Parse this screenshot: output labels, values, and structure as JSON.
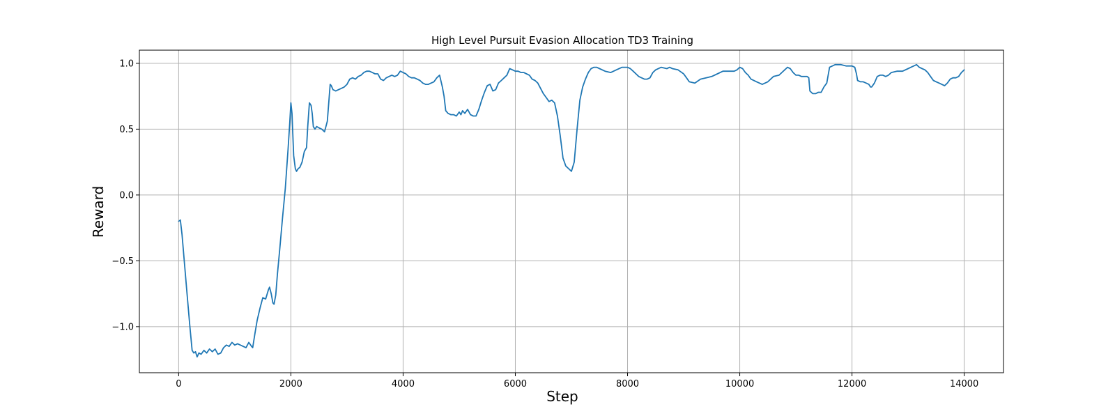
{
  "chart_data": {
    "type": "line",
    "title": "High Level Pursuit Evasion Allocation TD3 Training",
    "xlabel": "Step",
    "ylabel": "Reward",
    "xlim": [
      -700,
      14700
    ],
    "ylim": [
      -1.35,
      1.1
    ],
    "grid": true,
    "x_ticks": [
      0,
      2000,
      4000,
      6000,
      8000,
      10000,
      12000,
      14000
    ],
    "x_tick_labels": [
      "0",
      "2000",
      "4000",
      "6000",
      "8000",
      "10000",
      "12000",
      "14000"
    ],
    "y_ticks": [
      -1.0,
      -0.5,
      0.0,
      0.5,
      1.0
    ],
    "y_tick_labels": [
      "−1.0",
      "−0.5",
      "0.0",
      "0.5",
      "1.0"
    ],
    "series": [
      {
        "color": "#1f77b4",
        "x": [
          0,
          30,
          60,
          100,
          150,
          200,
          240,
          270,
          300,
          330,
          360,
          400,
          450,
          500,
          550,
          600,
          650,
          700,
          750,
          800,
          850,
          900,
          950,
          1000,
          1050,
          1100,
          1150,
          1200,
          1250,
          1300,
          1320,
          1360,
          1400,
          1450,
          1500,
          1550,
          1600,
          1620,
          1650,
          1680,
          1700,
          1730,
          1760,
          1800,
          1850,
          1900,
          1950,
          1980,
          2000,
          2020,
          2050,
          2080,
          2100,
          2130,
          2160,
          2200,
          2240,
          2280,
          2300,
          2330,
          2360,
          2380,
          2400,
          2430,
          2460,
          2500,
          2550,
          2600,
          2650,
          2700,
          2720,
          2750,
          2800,
          2850,
          2900,
          2950,
          3000,
          3050,
          3100,
          3150,
          3200,
          3250,
          3300,
          3350,
          3400,
          3450,
          3500,
          3550,
          3600,
          3650,
          3700,
          3750,
          3800,
          3850,
          3900,
          3950,
          4000,
          4050,
          4100,
          4150,
          4200,
          4250,
          4300,
          4350,
          4400,
          4450,
          4500,
          4550,
          4600,
          4650,
          4700,
          4730,
          4760,
          4800,
          4850,
          4900,
          4950,
          5000,
          5030,
          5060,
          5100,
          5150,
          5200,
          5250,
          5300,
          5350,
          5400,
          5450,
          5500,
          5550,
          5600,
          5650,
          5700,
          5750,
          5800,
          5850,
          5900,
          5950,
          6000,
          6050,
          6100,
          6150,
          6200,
          6250,
          6300,
          6350,
          6400,
          6450,
          6500,
          6550,
          6600,
          6650,
          6700,
          6750,
          6800,
          6850,
          6900,
          6950,
          7000,
          7050,
          7100,
          7150,
          7200,
          7250,
          7300,
          7350,
          7400,
          7450,
          7500,
          7600,
          7700,
          7800,
          7900,
          8000,
          8050,
          8100,
          8150,
          8200,
          8250,
          8300,
          8350,
          8400,
          8450,
          8500,
          8600,
          8700,
          8750,
          8800,
          8900,
          9000,
          9050,
          9100,
          9200,
          9300,
          9400,
          9500,
          9600,
          9700,
          9800,
          9900,
          9950,
          10000,
          10050,
          10100,
          10150,
          10200,
          10300,
          10400,
          10500,
          10600,
          10700,
          10750,
          10800,
          10850,
          10900,
          10950,
          11000,
          11050,
          11100,
          11150,
          11200,
          11230,
          11250,
          11300,
          11350,
          11400,
          11450,
          11500,
          11550,
          11600,
          11700,
          11800,
          11900,
          12000,
          12050,
          12080,
          12100,
          12150,
          12200,
          12250,
          12300,
          12330,
          12350,
          12400,
          12450,
          12500,
          12550,
          12600,
          12650,
          12700,
          12800,
          12900,
          13000,
          13050,
          13100,
          13150,
          13200,
          13250,
          13300,
          13350,
          13400,
          13450,
          13500,
          13550,
          13600,
          13650,
          13700,
          13750,
          13800,
          13850,
          13900,
          13950,
          14000
        ],
        "values": [
          -0.2,
          -0.19,
          -0.3,
          -0.5,
          -0.75,
          -1.0,
          -1.18,
          -1.2,
          -1.19,
          -1.23,
          -1.2,
          -1.21,
          -1.18,
          -1.2,
          -1.17,
          -1.19,
          -1.17,
          -1.21,
          -1.2,
          -1.16,
          -1.14,
          -1.15,
          -1.12,
          -1.14,
          -1.13,
          -1.14,
          -1.15,
          -1.16,
          -1.12,
          -1.15,
          -1.16,
          -1.05,
          -0.95,
          -0.86,
          -0.78,
          -0.79,
          -0.72,
          -0.7,
          -0.75,
          -0.82,
          -0.83,
          -0.76,
          -0.6,
          -0.42,
          -0.18,
          0.05,
          0.35,
          0.55,
          0.7,
          0.62,
          0.3,
          0.2,
          0.18,
          0.2,
          0.21,
          0.25,
          0.33,
          0.36,
          0.52,
          0.7,
          0.68,
          0.62,
          0.52,
          0.5,
          0.52,
          0.51,
          0.5,
          0.48,
          0.56,
          0.84,
          0.83,
          0.8,
          0.79,
          0.8,
          0.81,
          0.82,
          0.84,
          0.88,
          0.89,
          0.88,
          0.9,
          0.91,
          0.93,
          0.94,
          0.94,
          0.93,
          0.92,
          0.92,
          0.88,
          0.87,
          0.89,
          0.9,
          0.91,
          0.9,
          0.91,
          0.94,
          0.93,
          0.92,
          0.9,
          0.89,
          0.89,
          0.88,
          0.87,
          0.85,
          0.84,
          0.84,
          0.85,
          0.86,
          0.89,
          0.91,
          0.82,
          0.75,
          0.64,
          0.62,
          0.61,
          0.61,
          0.6,
          0.63,
          0.61,
          0.64,
          0.62,
          0.65,
          0.61,
          0.6,
          0.6,
          0.65,
          0.72,
          0.78,
          0.83,
          0.84,
          0.79,
          0.8,
          0.85,
          0.87,
          0.89,
          0.91,
          0.96,
          0.95,
          0.94,
          0.94,
          0.93,
          0.93,
          0.92,
          0.91,
          0.88,
          0.87,
          0.85,
          0.81,
          0.77,
          0.74,
          0.71,
          0.72,
          0.7,
          0.6,
          0.45,
          0.28,
          0.22,
          0.2,
          0.18,
          0.25,
          0.5,
          0.72,
          0.82,
          0.88,
          0.93,
          0.96,
          0.97,
          0.97,
          0.96,
          0.94,
          0.93,
          0.95,
          0.97,
          0.97,
          0.96,
          0.94,
          0.92,
          0.9,
          0.89,
          0.88,
          0.88,
          0.89,
          0.93,
          0.95,
          0.97,
          0.96,
          0.97,
          0.96,
          0.95,
          0.92,
          0.89,
          0.86,
          0.85,
          0.88,
          0.89,
          0.9,
          0.92,
          0.94,
          0.94,
          0.94,
          0.95,
          0.97,
          0.96,
          0.93,
          0.91,
          0.88,
          0.86,
          0.84,
          0.86,
          0.9,
          0.91,
          0.93,
          0.95,
          0.97,
          0.96,
          0.93,
          0.91,
          0.91,
          0.9,
          0.9,
          0.9,
          0.89,
          0.79,
          0.77,
          0.77,
          0.78,
          0.78,
          0.82,
          0.85,
          0.97,
          0.99,
          0.99,
          0.98,
          0.98,
          0.97,
          0.92,
          0.87,
          0.86,
          0.86,
          0.85,
          0.84,
          0.82,
          0.82,
          0.85,
          0.9,
          0.91,
          0.91,
          0.9,
          0.91,
          0.93,
          0.94,
          0.94,
          0.96,
          0.97,
          0.98,
          0.99,
          0.97,
          0.96,
          0.95,
          0.93,
          0.9,
          0.87,
          0.86,
          0.85,
          0.84,
          0.83,
          0.85,
          0.88,
          0.89,
          0.89,
          0.9,
          0.93,
          0.95
        ]
      }
    ]
  }
}
